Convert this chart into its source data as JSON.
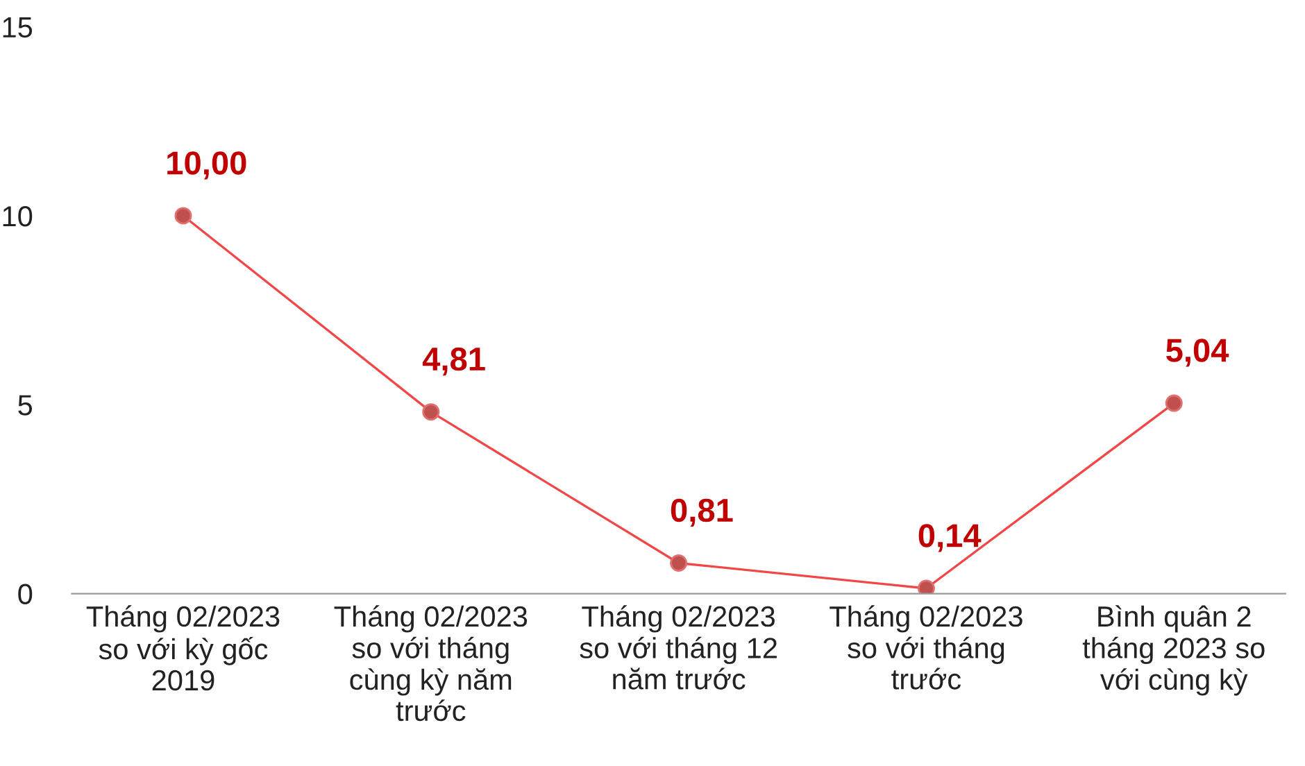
{
  "chart_data": {
    "type": "line",
    "categories": [
      "Tháng 02/2023\nso với kỳ gốc\n2019",
      "Tháng 02/2023\nso với tháng\ncùng kỳ năm\ntrước",
      "Tháng 02/2023\nso với tháng 12\nnăm trước",
      "Tháng 02/2023\nso với tháng\ntrước",
      "Bình quân 2\ntháng 2023 so\nvới cùng kỳ"
    ],
    "series": [
      {
        "color": "#f04848",
        "values": [
          10.0,
          4.81,
          0.81,
          0.14,
          5.04
        ],
        "value_labels": [
          "10,00",
          "4,81",
          "0,81",
          "0,14",
          "5,04"
        ]
      }
    ],
    "ylim": [
      0,
      15
    ],
    "yticks": [
      0,
      5,
      10,
      15
    ],
    "marker": "circle",
    "line_style": "solid",
    "grid": false,
    "legend": false
  }
}
